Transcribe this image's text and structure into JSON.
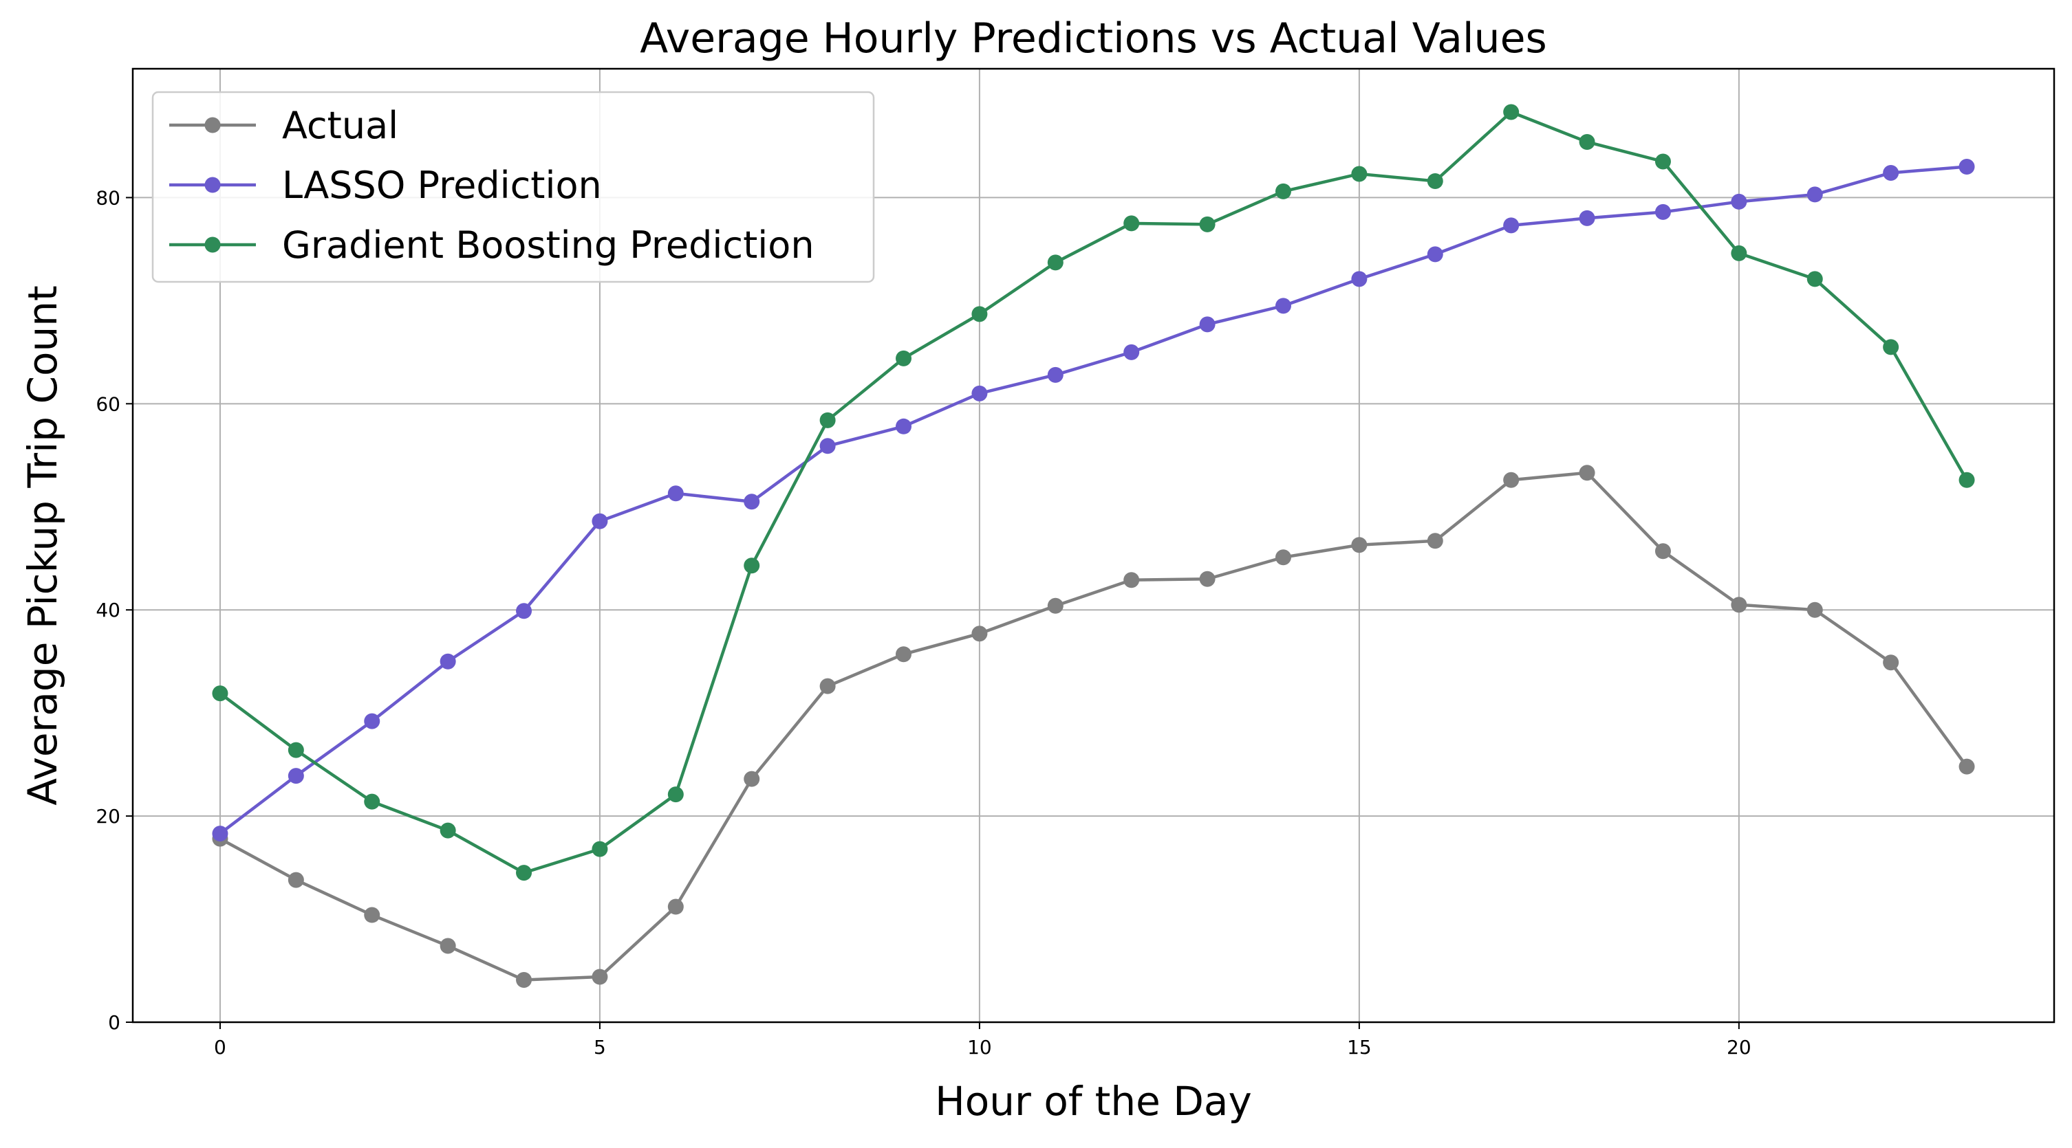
{
  "chart_data": {
    "type": "line",
    "title": "Average Hourly Predictions vs Actual Values",
    "xlabel": "Hour of the Day",
    "ylabel": "Average Pickup Trip Count",
    "xlim": [
      -1.15,
      24.15
    ],
    "ylim": [
      0,
      92.5
    ],
    "xticks": [
      0,
      5,
      10,
      15,
      20
    ],
    "yticks": [
      0,
      20,
      40,
      60,
      80
    ],
    "grid": true,
    "legend_position": "top-left",
    "x": [
      0,
      1,
      2,
      3,
      4,
      5,
      6,
      7,
      8,
      9,
      10,
      11,
      12,
      13,
      14,
      15,
      16,
      17,
      18,
      19,
      20,
      21,
      22,
      23
    ],
    "series": [
      {
        "name": "Actual",
        "color": "#808080",
        "marker": "circle",
        "values": [
          17.8,
          13.8,
          10.4,
          7.4,
          4.1,
          4.4,
          11.2,
          23.6,
          32.6,
          35.7,
          37.7,
          40.4,
          42.9,
          43.0,
          45.1,
          46.3,
          46.7,
          52.6,
          53.3,
          45.7,
          40.5,
          40.0,
          34.9,
          24.8
        ]
      },
      {
        "name": "LASSO Prediction",
        "color": "#6a5acd",
        "marker": "circle",
        "values": [
          18.3,
          23.9,
          29.2,
          35.0,
          39.9,
          48.6,
          51.3,
          50.5,
          55.9,
          57.8,
          61.0,
          62.8,
          65.0,
          67.7,
          69.5,
          72.1,
          74.5,
          77.3,
          78.0,
          78.6,
          79.6,
          80.3,
          82.4,
          83.0
        ]
      },
      {
        "name": "Gradient Boosting Prediction",
        "color": "#2e8b57",
        "marker": "circle",
        "values": [
          31.9,
          26.4,
          21.4,
          18.6,
          14.5,
          16.8,
          22.1,
          44.3,
          58.4,
          64.4,
          68.7,
          73.7,
          77.5,
          77.4,
          80.6,
          82.3,
          81.6,
          88.3,
          85.4,
          83.5,
          74.6,
          72.1,
          65.5,
          52.6
        ]
      }
    ]
  }
}
